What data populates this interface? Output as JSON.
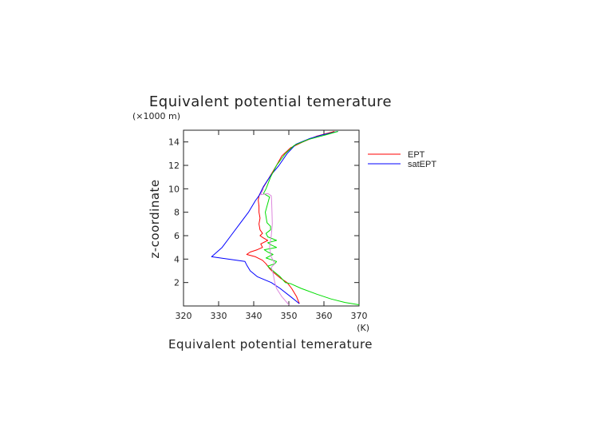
{
  "chart_data": {
    "type": "line",
    "title": "Equivalent potential temerature",
    "xlabel": "Equivalent potential temerature",
    "xunit": "(K)",
    "ylabel": "z-coordinate",
    "yunit": "(×1000 m)",
    "xlim": [
      320,
      370
    ],
    "ylim": [
      0,
      15
    ],
    "xticks": [
      320,
      330,
      340,
      350,
      360,
      370
    ],
    "yticks": [
      2,
      4,
      6,
      8,
      10,
      12,
      14
    ],
    "grid": false,
    "legend_position": "right",
    "series": [
      {
        "name": "EPT",
        "color": "#ff0000",
        "points": [
          [
            353.0,
            0.2
          ],
          [
            352.2,
            0.8
          ],
          [
            350.8,
            1.5
          ],
          [
            349.5,
            2.0
          ],
          [
            347.5,
            2.4
          ],
          [
            345.5,
            2.9
          ],
          [
            344.5,
            3.2
          ],
          [
            343.5,
            3.6
          ],
          [
            342.5,
            3.9
          ],
          [
            340.5,
            4.2
          ],
          [
            338.0,
            4.4
          ],
          [
            339.0,
            4.6
          ],
          [
            341.0,
            4.8
          ],
          [
            342.5,
            5.0
          ],
          [
            342.0,
            5.3
          ],
          [
            344.0,
            5.6
          ],
          [
            342.8,
            5.8
          ],
          [
            341.8,
            6.0
          ],
          [
            342.5,
            6.2
          ],
          [
            341.8,
            6.5
          ],
          [
            341.5,
            7.0
          ],
          [
            341.8,
            7.5
          ],
          [
            341.5,
            8.0
          ],
          [
            341.5,
            8.5
          ],
          [
            341.3,
            9.0
          ],
          [
            341.5,
            9.4
          ],
          [
            342.5,
            10.0
          ],
          [
            344.5,
            11.0
          ],
          [
            346.5,
            12.0
          ],
          [
            348.0,
            12.8
          ],
          [
            350.5,
            13.5
          ],
          [
            354.0,
            14.0
          ],
          [
            358.0,
            14.5
          ],
          [
            363.0,
            14.9
          ]
        ]
      },
      {
        "name": "satEPT",
        "color": "#0000ff",
        "points": [
          [
            353.0,
            0.2
          ],
          [
            350.5,
            0.8
          ],
          [
            347.5,
            1.5
          ],
          [
            345.0,
            2.0
          ],
          [
            341.0,
            2.5
          ],
          [
            339.0,
            3.0
          ],
          [
            338.0,
            3.5
          ],
          [
            337.5,
            3.8
          ],
          [
            328.0,
            4.2
          ],
          [
            331.0,
            5.0
          ],
          [
            333.5,
            6.0
          ],
          [
            336.0,
            7.0
          ],
          [
            338.5,
            8.0
          ],
          [
            340.5,
            9.0
          ],
          [
            341.5,
            9.4
          ],
          [
            342.8,
            10.2
          ],
          [
            345.0,
            11.2
          ],
          [
            347.2,
            12.0
          ],
          [
            349.5,
            13.0
          ],
          [
            352.0,
            13.8
          ],
          [
            356.0,
            14.3
          ],
          [
            359.5,
            14.6
          ],
          [
            364.0,
            14.9
          ]
        ]
      },
      {
        "name": "",
        "color": "#00dd00",
        "points": [
          [
            370.0,
            0.1
          ],
          [
            366.0,
            0.3
          ],
          [
            362.0,
            0.6
          ],
          [
            358.0,
            1.0
          ],
          [
            353.5,
            1.5
          ],
          [
            350.5,
            1.9
          ],
          [
            349.0,
            2.0
          ],
          [
            347.5,
            2.5
          ],
          [
            345.5,
            3.0
          ],
          [
            344.0,
            3.4
          ],
          [
            346.0,
            3.6
          ],
          [
            346.5,
            3.8
          ],
          [
            343.5,
            4.1
          ],
          [
            345.5,
            4.4
          ],
          [
            344.0,
            4.6
          ],
          [
            343.0,
            4.8
          ],
          [
            346.5,
            5.0
          ],
          [
            345.0,
            5.2
          ],
          [
            344.0,
            5.4
          ],
          [
            346.5,
            5.6
          ],
          [
            344.0,
            5.9
          ],
          [
            343.5,
            6.2
          ],
          [
            344.8,
            6.5
          ],
          [
            344.8,
            6.8
          ],
          [
            343.8,
            7.1
          ],
          [
            343.3,
            8.0
          ],
          [
            344.5,
            9.3
          ],
          [
            342.8,
            9.6
          ],
          [
            343.5,
            10.0
          ],
          [
            344.8,
            11.0
          ],
          [
            346.5,
            12.0
          ],
          [
            349.0,
            13.0
          ],
          [
            351.5,
            13.7
          ],
          [
            355.5,
            14.2
          ],
          [
            360.5,
            14.6
          ],
          [
            364.0,
            14.9
          ]
        ]
      },
      {
        "name": "",
        "color": "#dd88dd",
        "points": [
          [
            350.0,
            0.1
          ],
          [
            348.0,
            0.8
          ],
          [
            346.5,
            1.5
          ],
          [
            346.0,
            2.0
          ],
          [
            345.5,
            2.8
          ],
          [
            345.0,
            3.3
          ],
          [
            346.0,
            3.6
          ],
          [
            345.0,
            4.2
          ],
          [
            344.5,
            5.0
          ],
          [
            345.0,
            6.0
          ],
          [
            345.3,
            7.0
          ],
          [
            345.2,
            8.0
          ],
          [
            345.1,
            9.0
          ],
          [
            345.0,
            9.4
          ],
          [
            344.0,
            9.6
          ],
          [
            342.0,
            9.5
          ],
          [
            342.8,
            10.0
          ]
        ]
      }
    ]
  }
}
